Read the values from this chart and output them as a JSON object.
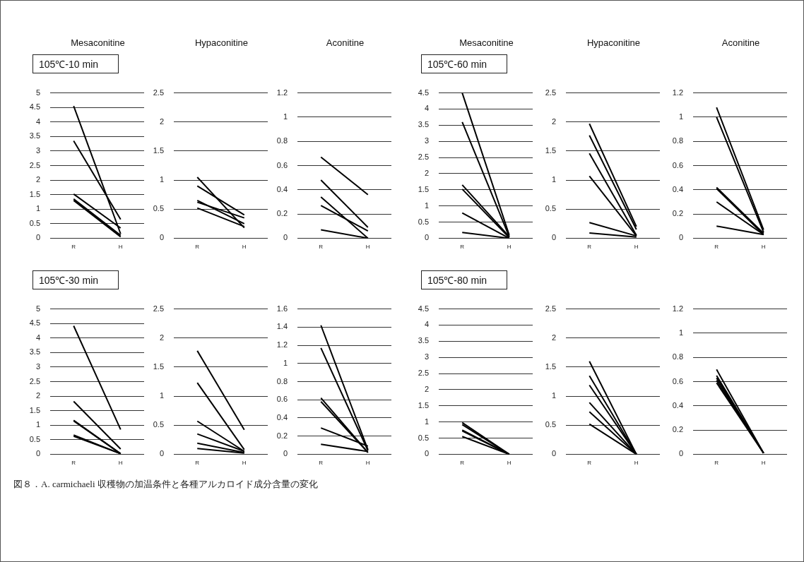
{
  "chart_data": [
    {
      "type": "line",
      "title": "Mesaconitine",
      "subtitle": "105℃-10 min",
      "categories": [
        "R",
        "H"
      ],
      "ylim": [
        0,
        5
      ],
      "yticks": [
        0,
        0.5,
        1,
        1.5,
        2,
        2.5,
        3,
        3.5,
        4,
        4.5,
        5
      ],
      "grid": "y",
      "marker": "none",
      "annotations": [
        "図８．A. carmichaeli 収穫物の加温条件と各種アルカロイド成分含量の変化"
      ],
      "series": [
        {
          "color": "#000000",
          "values": [
            4.55,
            0.15
          ]
        },
        {
          "color": "#000000",
          "values": [
            3.35,
            0.65
          ]
        },
        {
          "color": "#000000",
          "values": [
            1.52,
            0.35
          ]
        },
        {
          "color": "#000000",
          "values": [
            1.35,
            0.1
          ]
        },
        {
          "color": "#000000",
          "values": [
            1.3,
            0.05
          ]
        }
      ]
    },
    {
      "type": "line",
      "title": "Hypaconitine",
      "categories": [
        "R",
        "H"
      ],
      "ylim": [
        0,
        2.5
      ],
      "yticks": [
        0,
        0.5,
        1,
        1.5,
        2,
        2.5
      ],
      "grid": "y",
      "marker": "none",
      "series": [
        {
          "color": "#000000",
          "values": [
            1.05,
            0.18
          ]
        },
        {
          "color": "#000000",
          "values": [
            0.9,
            0.4
          ]
        },
        {
          "color": "#000000",
          "values": [
            0.65,
            0.25
          ]
        },
        {
          "color": "#000000",
          "values": [
            0.62,
            0.35
          ]
        },
        {
          "color": "#000000",
          "values": [
            0.52,
            0.2
          ]
        }
      ]
    },
    {
      "type": "line",
      "title": "Aconitine",
      "categories": [
        "R",
        "H"
      ],
      "ylim": [
        0,
        1.2
      ],
      "yticks": [
        0,
        0.2,
        0.4,
        0.6,
        0.8,
        1,
        1.2
      ],
      "grid": "y",
      "marker": "none",
      "series": [
        {
          "color": "#000000",
          "values": [
            0.67,
            0.36
          ]
        },
        {
          "color": "#000000",
          "values": [
            0.48,
            0.09
          ]
        },
        {
          "color": "#000000",
          "values": [
            0.34,
            0
          ]
        },
        {
          "color": "#000000",
          "values": [
            0.27,
            0.06
          ]
        },
        {
          "color": "#000000",
          "values": [
            0.07,
            0
          ]
        }
      ]
    },
    {
      "type": "line",
      "title": "Mesaconitine",
      "subtitle": "105℃-60 min",
      "categories": [
        "R",
        "H"
      ],
      "ylim": [
        0,
        4.5
      ],
      "yticks": [
        0,
        0.5,
        1,
        1.5,
        2,
        2.5,
        3,
        3.5,
        4,
        4.5
      ],
      "grid": "y",
      "marker": "none",
      "series": [
        {
          "color": "#000000",
          "values": [
            4.5,
            0.1
          ]
        },
        {
          "color": "#000000",
          "values": [
            3.6,
            0.05
          ]
        },
        {
          "color": "#000000",
          "values": [
            1.65,
            0.05
          ]
        },
        {
          "color": "#000000",
          "values": [
            1.52,
            0.02
          ]
        },
        {
          "color": "#000000",
          "values": [
            0.78,
            0
          ]
        },
        {
          "color": "#000000",
          "values": [
            0.18,
            0
          ]
        }
      ]
    },
    {
      "type": "line",
      "title": "Hypaconitine",
      "categories": [
        "R",
        "H"
      ],
      "ylim": [
        0,
        2.5
      ],
      "yticks": [
        0,
        0.5,
        1,
        1.5,
        2,
        2.5
      ],
      "grid": "y",
      "marker": "none",
      "series": [
        {
          "color": "#000000",
          "values": [
            1.97,
            0.2
          ]
        },
        {
          "color": "#000000",
          "values": [
            1.77,
            0.15
          ]
        },
        {
          "color": "#000000",
          "values": [
            1.46,
            0.05
          ]
        },
        {
          "color": "#000000",
          "values": [
            1.07,
            0.04
          ]
        },
        {
          "color": "#000000",
          "values": [
            0.27,
            0.04
          ]
        },
        {
          "color": "#000000",
          "values": [
            0.09,
            0.02
          ]
        }
      ]
    },
    {
      "type": "line",
      "title": "Aconitine",
      "categories": [
        "R",
        "H"
      ],
      "ylim": [
        0,
        1.2
      ],
      "yticks": [
        0,
        0.2,
        0.4,
        0.6,
        0.8,
        1,
        1.2
      ],
      "grid": "y",
      "marker": "none",
      "series": [
        {
          "color": "#000000",
          "values": [
            1.08,
            0.07
          ]
        },
        {
          "color": "#000000",
          "values": [
            1.0,
            0.05
          ]
        },
        {
          "color": "#000000",
          "values": [
            0.42,
            0.04
          ]
        },
        {
          "color": "#000000",
          "values": [
            0.41,
            0.03
          ]
        },
        {
          "color": "#000000",
          "values": [
            0.3,
            0.03
          ]
        },
        {
          "color": "#000000",
          "values": [
            0.1,
            0.03
          ]
        }
      ]
    },
    {
      "type": "line",
      "subtitle": "105℃-30 min",
      "categories": [
        "R",
        "H"
      ],
      "ylim": [
        0,
        5
      ],
      "yticks": [
        0,
        0.5,
        1,
        1.5,
        2,
        2.5,
        3,
        3.5,
        4,
        4.5,
        5
      ],
      "grid": "y",
      "marker": "none",
      "series": [
        {
          "color": "#000000",
          "values": [
            4.42,
            0.85
          ]
        },
        {
          "color": "#000000",
          "values": [
            1.82,
            0.18
          ]
        },
        {
          "color": "#000000",
          "values": [
            1.17,
            0.02
          ]
        },
        {
          "color": "#000000",
          "values": [
            1.15,
            0.02
          ]
        },
        {
          "color": "#000000",
          "values": [
            0.66,
            0.02
          ]
        },
        {
          "color": "#000000",
          "values": [
            0.62,
            0.02
          ]
        }
      ]
    },
    {
      "type": "line",
      "categories": [
        "R",
        "H"
      ],
      "ylim": [
        0,
        2.5
      ],
      "yticks": [
        0,
        0.5,
        1,
        1.5,
        2,
        2.5
      ],
      "grid": "y",
      "marker": "none",
      "series": [
        {
          "color": "#000000",
          "values": [
            1.78,
            0.42
          ]
        },
        {
          "color": "#000000",
          "values": [
            1.23,
            0.08
          ]
        },
        {
          "color": "#000000",
          "values": [
            0.57,
            0.05
          ]
        },
        {
          "color": "#000000",
          "values": [
            0.35,
            0.05
          ]
        },
        {
          "color": "#000000",
          "values": [
            0.19,
            0.03
          ]
        },
        {
          "color": "#000000",
          "values": [
            0.1,
            0.02
          ]
        }
      ]
    },
    {
      "type": "line",
      "categories": [
        "R",
        "H"
      ],
      "ylim": [
        0,
        1.6
      ],
      "yticks": [
        0,
        0.2,
        0.4,
        0.6,
        0.8,
        1,
        1.2,
        1.4,
        1.6
      ],
      "grid": "y",
      "marker": "none",
      "series": [
        {
          "color": "#000000",
          "values": [
            1.42,
            0.05
          ]
        },
        {
          "color": "#000000",
          "values": [
            1.17,
            0.04
          ]
        },
        {
          "color": "#000000",
          "values": [
            0.62,
            0.02
          ]
        },
        {
          "color": "#000000",
          "values": [
            0.58,
            0.02
          ]
        },
        {
          "color": "#000000",
          "values": [
            0.29,
            0.09
          ]
        },
        {
          "color": "#000000",
          "values": [
            0.11,
            0.03
          ]
        }
      ]
    },
    {
      "type": "line",
      "subtitle": "105℃-80 min",
      "categories": [
        "R",
        "H"
      ],
      "ylim": [
        0,
        4.5
      ],
      "yticks": [
        0,
        0.5,
        1,
        1.5,
        2,
        2.5,
        3,
        3.5,
        4,
        4.5
      ],
      "grid": "y",
      "marker": "none",
      "series": [
        {
          "color": "#000000",
          "values": [
            0.98,
            0
          ]
        },
        {
          "color": "#000000",
          "values": [
            0.92,
            0
          ]
        },
        {
          "color": "#000000",
          "values": [
            0.75,
            0
          ]
        },
        {
          "color": "#000000",
          "values": [
            0.72,
            0
          ]
        },
        {
          "color": "#000000",
          "values": [
            0.55,
            0
          ]
        }
      ]
    },
    {
      "type": "line",
      "categories": [
        "R",
        "H"
      ],
      "ylim": [
        0,
        2.5
      ],
      "yticks": [
        0,
        0.5,
        1,
        1.5,
        2,
        2.5
      ],
      "grid": "y",
      "marker": "none",
      "series": [
        {
          "color": "#000000",
          "values": [
            1.6,
            0
          ]
        },
        {
          "color": "#000000",
          "values": [
            1.35,
            0
          ]
        },
        {
          "color": "#000000",
          "values": [
            1.19,
            0
          ]
        },
        {
          "color": "#000000",
          "values": [
            0.89,
            0
          ]
        },
        {
          "color": "#000000",
          "values": [
            0.73,
            0
          ]
        },
        {
          "color": "#000000",
          "values": [
            0.52,
            0
          ]
        }
      ]
    },
    {
      "type": "line",
      "categories": [
        "R",
        "H"
      ],
      "ylim": [
        0,
        1.2
      ],
      "yticks": [
        0,
        0.2,
        0.4,
        0.6,
        0.8,
        1,
        1.2
      ],
      "grid": "y",
      "marker": "none",
      "series": [
        {
          "color": "#000000",
          "values": [
            0.7,
            0.01
          ]
        },
        {
          "color": "#000000",
          "values": [
            0.65,
            0.01
          ]
        },
        {
          "color": "#000000",
          "values": [
            0.63,
            0.01
          ]
        },
        {
          "color": "#000000",
          "values": [
            0.61,
            0.01
          ]
        },
        {
          "color": "#000000",
          "values": [
            0.59,
            0.01
          ]
        }
      ]
    }
  ]
}
